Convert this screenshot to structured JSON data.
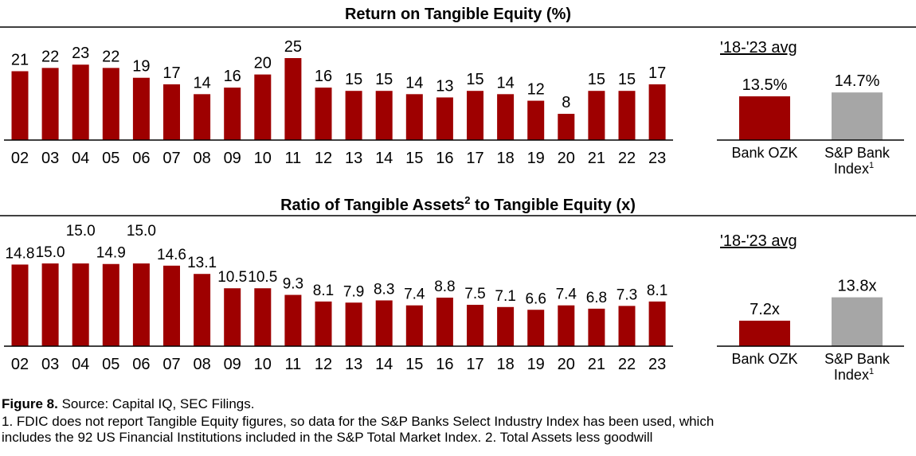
{
  "colors": {
    "bar": "#9e0000",
    "index": "#a6a6a6"
  },
  "chart_data": [
    {
      "type": "bar",
      "title": "Return on Tangible Equity (%)",
      "categories": [
        "02",
        "03",
        "04",
        "05",
        "06",
        "07",
        "08",
        "09",
        "10",
        "11",
        "12",
        "13",
        "14",
        "15",
        "16",
        "17",
        "18",
        "19",
        "20",
        "21",
        "22",
        "23"
      ],
      "values": [
        21,
        22,
        23,
        22,
        19,
        17,
        14,
        16,
        20,
        25,
        16,
        15,
        15,
        14,
        13,
        15,
        14,
        12,
        8,
        15,
        15,
        17
      ],
      "labels": [
        "21",
        "22",
        "23",
        "22",
        "19",
        "17",
        "14",
        "16",
        "20",
        "25",
        "16",
        "15",
        "15",
        "14",
        "13",
        "15",
        "14",
        "12",
        "8",
        "15",
        "15",
        "17"
      ]
    },
    {
      "type": "bar",
      "title": "'18-'23 avg",
      "categories": [
        "Bank OZK",
        "S&P Bank Index¹"
      ],
      "values": [
        13.5,
        14.7
      ],
      "labels": [
        "13.5%",
        "14.7%"
      ]
    },
    {
      "type": "bar",
      "title_parts": [
        "Ratio of Tangible Assets",
        "2",
        " to Tangible Equity (x)"
      ],
      "categories": [
        "02",
        "03",
        "04",
        "05",
        "06",
        "07",
        "08",
        "09",
        "10",
        "11",
        "12",
        "13",
        "14",
        "15",
        "16",
        "17",
        "18",
        "19",
        "20",
        "21",
        "22",
        "23"
      ],
      "values": [
        14.8,
        15.0,
        15.0,
        14.9,
        15.0,
        14.6,
        13.1,
        10.5,
        10.5,
        9.3,
        8.1,
        7.9,
        8.3,
        7.4,
        8.8,
        7.5,
        7.1,
        6.6,
        7.4,
        6.8,
        7.3,
        8.1
      ],
      "labels": [
        "14.8",
        "15.0",
        "15.0",
        "14.9",
        "15.0",
        "14.6",
        "13.1",
        "10.5",
        "10.5",
        "9.3",
        "8.1",
        "7.9",
        "8.3",
        "7.4",
        "8.8",
        "7.5",
        "7.1",
        "6.6",
        "7.4",
        "6.8",
        "7.3",
        "8.1"
      ]
    },
    {
      "type": "bar",
      "title": "'18-'23 avg",
      "categories": [
        "Bank OZK",
        "S&P Bank Index¹"
      ],
      "values": [
        7.2,
        13.8
      ],
      "labels": [
        "7.2x",
        "13.8x"
      ]
    }
  ],
  "right_labels": {
    "a": "Bank OZK",
    "b1": "S&P Bank",
    "b2": "Index",
    "sup": "1"
  },
  "footer": {
    "fig": "Figure 8.",
    "source": " Source: Capital IQ, SEC Filings.",
    "note1a": "1. FDIC does not report Tangible Equity figures, so data for the S&P Banks Select Industry Index has been used, which",
    "note1b": "includes the 92 US Financial Institutions included in the S&P Total Market Index.   2. Total Assets less goodwill"
  }
}
